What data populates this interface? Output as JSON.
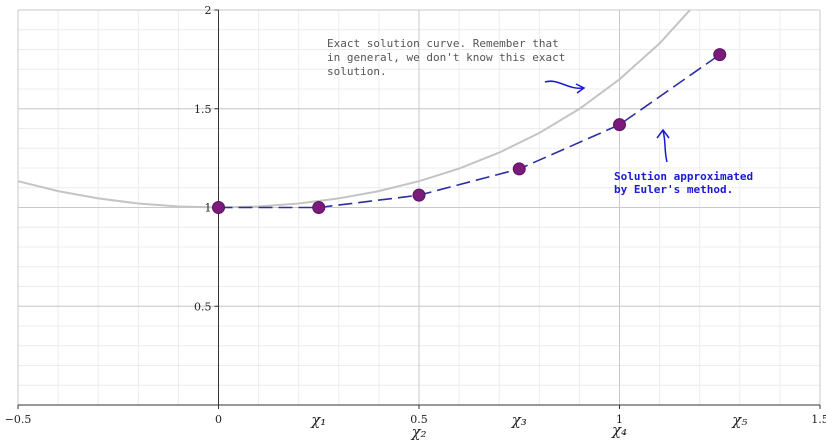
{
  "chart_data": {
    "type": "line",
    "xlim": [
      -0.5,
      1.5
    ],
    "ylim": [
      0,
      2
    ],
    "grid": true,
    "x_ticks": [
      {
        "value": -0.5,
        "label": "−0.5"
      },
      {
        "value": 0,
        "label": "0"
      },
      {
        "value": 0.5,
        "label": "0.5"
      },
      {
        "value": 1,
        "label": "1"
      },
      {
        "value": 1.5,
        "label": "1.5"
      }
    ],
    "y_ticks": [
      {
        "value": 0.5,
        "label": "0.5"
      },
      {
        "value": 1,
        "label": "1"
      },
      {
        "value": 1.5,
        "label": "1.5"
      },
      {
        "value": 2,
        "label": "2"
      }
    ],
    "series": [
      {
        "style": "solid-gray",
        "color": "#c4c4c4",
        "x": [
          -0.5,
          -0.4,
          -0.3,
          -0.2,
          -0.1,
          0,
          0.1,
          0.2,
          0.3,
          0.4,
          0.5,
          0.6,
          0.7,
          0.8,
          0.9,
          1.0,
          1.1,
          1.2,
          1.3
        ],
        "y": [
          1.133,
          1.083,
          1.046,
          1.02,
          1.005,
          1.0,
          1.005,
          1.02,
          1.046,
          1.083,
          1.133,
          1.197,
          1.278,
          1.377,
          1.499,
          1.649,
          1.831,
          2.054,
          2.327
        ]
      },
      {
        "style": "dashed-blue-markers",
        "color": "#2e2ea0",
        "marker_color": "#7b1a7b",
        "x": [
          0,
          0.25,
          0.5,
          0.75,
          1.0,
          1.25
        ],
        "y": [
          1.0,
          1.0,
          1.0625,
          1.1953,
          1.4194,
          1.7742
        ]
      }
    ],
    "annotations": [
      {
        "color": "#555555",
        "lines": [
          "Exact solution curve. Remember that",
          "in general, we don't know this exact",
          "solution."
        ]
      },
      {
        "color": "#1a1ad6",
        "lines": [
          "Solution approximated",
          "by Euler's method."
        ]
      }
    ],
    "handwritten_x_labels": [
      {
        "x": 0.25,
        "label": "χ₁"
      },
      {
        "x": 0.5,
        "label": "χ₂"
      },
      {
        "x": 0.75,
        "label": "χ₃"
      },
      {
        "x": 1.0,
        "label": "χ₄"
      },
      {
        "x": 1.3,
        "label": "χ₅"
      }
    ]
  }
}
